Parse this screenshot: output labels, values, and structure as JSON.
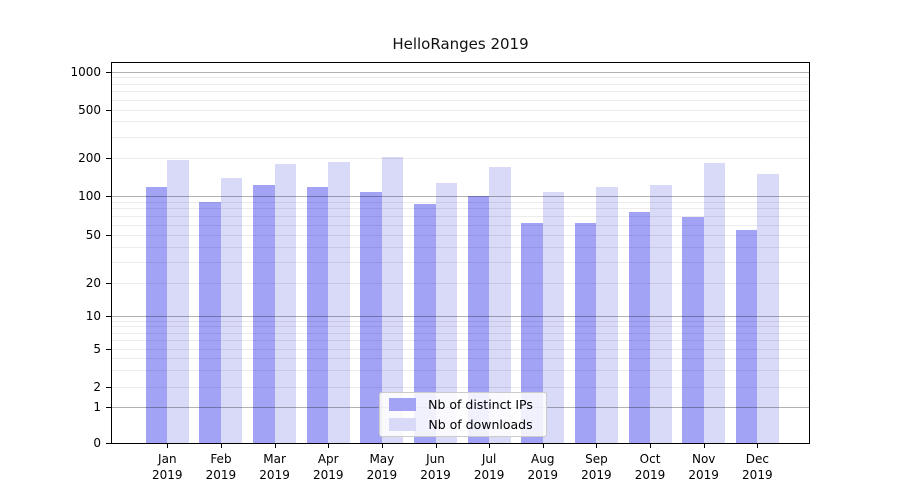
{
  "title": "HelloRanges 2019",
  "chart_data": {
    "type": "bar",
    "categories": [
      "Jan",
      "Feb",
      "Mar",
      "Apr",
      "May",
      "Jun",
      "Jul",
      "Aug",
      "Sep",
      "Oct",
      "Nov",
      "Dec"
    ],
    "year_label": "2019",
    "series": [
      {
        "name": "Nb of distinct IPs",
        "color": "#a3a3f5",
        "values": [
          118,
          90,
          121,
          118,
          108,
          86,
          100,
          62,
          62,
          75,
          69,
          55
        ]
      },
      {
        "name": "Nb of downloads",
        "color": "#d9d9f8",
        "values": [
          192,
          139,
          178,
          187,
          203,
          126,
          168,
          107,
          117,
          121,
          184,
          149
        ]
      }
    ],
    "yscale": "symlog",
    "yticks": [
      0,
      1,
      2,
      5,
      10,
      20,
      50,
      100,
      200,
      500,
      1000
    ],
    "ylim": [
      0,
      1200
    ],
    "grid": true,
    "grid_major_color": "#b3b3b3",
    "grid_minor_color": "#ececec",
    "legend_position": "lower center"
  }
}
